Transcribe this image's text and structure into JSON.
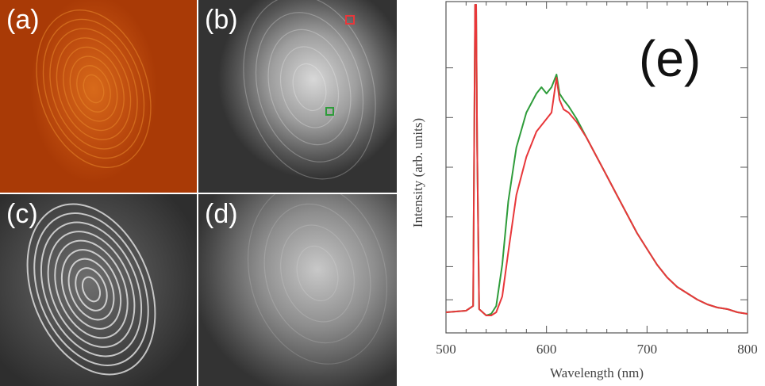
{
  "panels": {
    "a": {
      "label": "(a)"
    },
    "b": {
      "label": "(b)"
    },
    "c": {
      "label": "(c)"
    },
    "d": {
      "label": "(d)"
    }
  },
  "colors": {
    "green_series": "#2e9c3a",
    "red_series": "#e8373a",
    "axis": "#555555"
  },
  "chart_data": {
    "type": "line",
    "panel_label": "(e)",
    "xlabel": "Wavelength (nm)",
    "ylabel": "Intensity (arb. units)",
    "xlim": [
      500,
      800
    ],
    "ylim": [
      0,
      1
    ],
    "x_ticks": [
      "500",
      "600",
      "700",
      "800"
    ],
    "grid": false,
    "legend": "none",
    "series": [
      {
        "color": "#2e9c3a",
        "x": [
          500,
          520,
          527,
          529,
          530,
          531,
          533,
          540,
          545,
          550,
          556,
          562,
          570,
          580,
          590,
          595,
          600,
          605,
          610,
          613,
          617,
          622,
          630,
          640,
          650,
          660,
          670,
          680,
          690,
          700,
          710,
          720,
          730,
          740,
          750,
          760,
          770,
          780,
          790,
          800
        ],
        "y": [
          0.03,
          0.035,
          0.05,
          1.0,
          1.0,
          0.55,
          0.04,
          0.02,
          0.025,
          0.05,
          0.18,
          0.38,
          0.55,
          0.66,
          0.72,
          0.74,
          0.72,
          0.74,
          0.78,
          0.72,
          0.7,
          0.68,
          0.64,
          0.58,
          0.52,
          0.46,
          0.4,
          0.34,
          0.28,
          0.23,
          0.18,
          0.14,
          0.11,
          0.09,
          0.07,
          0.055,
          0.045,
          0.04,
          0.03,
          0.025
        ]
      },
      {
        "color": "#e8373a",
        "x": [
          500,
          520,
          527,
          529,
          530,
          531,
          533,
          540,
          545,
          550,
          556,
          562,
          570,
          580,
          590,
          600,
          605,
          610,
          613,
          617,
          622,
          630,
          640,
          650,
          660,
          670,
          680,
          690,
          700,
          710,
          720,
          730,
          740,
          750,
          760,
          770,
          780,
          790,
          800
        ],
        "y": [
          0.03,
          0.035,
          0.05,
          1.0,
          1.0,
          0.55,
          0.04,
          0.02,
          0.02,
          0.03,
          0.08,
          0.22,
          0.4,
          0.52,
          0.6,
          0.64,
          0.66,
          0.77,
          0.7,
          0.67,
          0.66,
          0.63,
          0.58,
          0.52,
          0.46,
          0.4,
          0.34,
          0.28,
          0.23,
          0.18,
          0.14,
          0.11,
          0.09,
          0.07,
          0.055,
          0.045,
          0.04,
          0.03,
          0.025
        ]
      }
    ]
  }
}
